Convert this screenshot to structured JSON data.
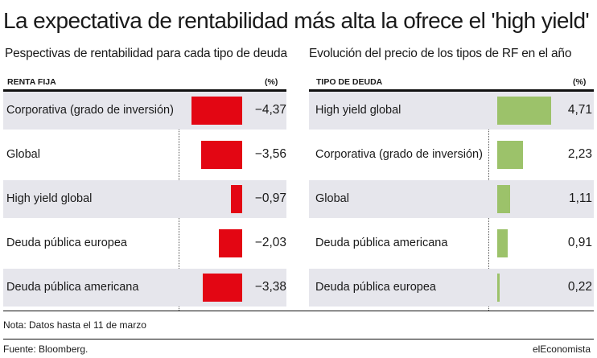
{
  "title": "La expectativa de rentabilidad más alta la ofrece el 'high yield'",
  "note": "Nota: Datos hasta el 11 de marzo",
  "source": "Fuente: Bloomberg.",
  "brand": "elEconomista",
  "colors": {
    "negative_bar": "#e30613",
    "positive_bar": "#9cc26a",
    "row_shade": "#e6e6ec"
  },
  "chart_data": [
    {
      "type": "bar",
      "orientation": "horizontal",
      "title": "Pespectivas de rentabilidad para cada tipo de deuda",
      "category_header": "RENTA FIJA",
      "unit_header": "(%)",
      "categories": [
        "Corporativa (grado de inversión)",
        "Global",
        "High yield global",
        "Deuda pública europea",
        "Deuda pública americana"
      ],
      "values": [
        -4.37,
        -3.56,
        -0.97,
        -2.03,
        -3.38
      ],
      "value_labels": [
        "−4,37",
        "−3,56",
        "−0,97",
        "−2,03",
        "−3,38"
      ],
      "xlim": [
        -4.37,
        0
      ],
      "bar_color": "#e30613"
    },
    {
      "type": "bar",
      "orientation": "horizontal",
      "title": "Evolución del precio de los tipos de RF en el año",
      "category_header": "TIPO DE DEUDA",
      "unit_header": "(%)",
      "categories": [
        "High yield global",
        "Corporativa (grado de inversión)",
        "Global",
        "Deuda pública americana",
        "Deuda pública europea"
      ],
      "values": [
        4.71,
        2.23,
        1.11,
        0.91,
        0.22
      ],
      "value_labels": [
        "4,71",
        "2,23",
        "1,11",
        "0,91",
        "0,22"
      ],
      "xlim": [
        0,
        4.71
      ],
      "bar_color": "#9cc26a"
    }
  ]
}
